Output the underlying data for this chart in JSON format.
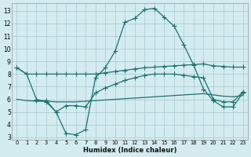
{
  "background_color": "#d4ecef",
  "grid_color": "#aacfd5",
  "line_color": "#1e7070",
  "xlabel": "Humidex (Indice chaleur)",
  "x_ticks": [
    0,
    1,
    2,
    3,
    4,
    5,
    6,
    7,
    8,
    9,
    10,
    11,
    12,
    13,
    14,
    15,
    16,
    17,
    18,
    19,
    20,
    21,
    22,
    23
  ],
  "y_ticks": [
    3,
    4,
    5,
    6,
    7,
    8,
    9,
    10,
    11,
    12,
    13
  ],
  "ylim": [
    2.8,
    13.6
  ],
  "xlim": [
    -0.5,
    23.5
  ],
  "line_main_x": [
    0,
    1,
    2,
    3,
    4,
    5,
    6,
    7,
    8,
    9,
    10,
    11,
    12,
    13,
    14,
    15,
    16,
    17,
    18,
    19,
    20,
    21,
    22,
    23
  ],
  "line_main_y": [
    8.5,
    8.0,
    6.0,
    5.8,
    5.0,
    3.3,
    3.2,
    3.6,
    7.7,
    8.5,
    9.8,
    12.1,
    12.4,
    13.1,
    13.2,
    12.5,
    11.8,
    10.3,
    8.7,
    6.8,
    5.9,
    5.4,
    5.4,
    6.5
  ],
  "line_upper_x": [
    0,
    1,
    2,
    3,
    4,
    5,
    6,
    7,
    8,
    9,
    10,
    11,
    12,
    13,
    14,
    15,
    16,
    17,
    18,
    19,
    20,
    21,
    22,
    23
  ],
  "line_upper_y": [
    8.5,
    8.0,
    8.0,
    8.0,
    8.0,
    8.0,
    8.0,
    8.0,
    8.0,
    8.1,
    8.2,
    8.3,
    8.4,
    8.5,
    8.55,
    8.6,
    8.65,
    8.7,
    8.75,
    8.8,
    8.65,
    8.6,
    8.55,
    8.55
  ],
  "line_lower1_x": [
    0,
    1,
    2,
    3,
    4,
    5,
    6,
    7,
    8,
    9,
    10,
    11,
    12,
    13,
    14,
    15,
    16,
    17,
    18,
    19,
    20,
    21,
    22,
    23
  ],
  "line_lower1_y": [
    6.0,
    5.9,
    5.85,
    5.85,
    5.8,
    5.8,
    5.8,
    5.85,
    5.9,
    5.95,
    6.0,
    6.05,
    6.1,
    6.15,
    6.2,
    6.25,
    6.3,
    6.35,
    6.4,
    6.45,
    6.35,
    6.25,
    6.2,
    6.3
  ],
  "line_lower2_x": [
    2,
    3,
    4,
    5,
    6,
    7,
    8,
    9,
    10,
    11,
    12,
    13,
    14,
    15,
    16,
    17,
    18,
    19,
    20,
    21,
    22,
    23
  ],
  "line_lower2_y": [
    5.9,
    5.9,
    5.0,
    5.5,
    5.5,
    5.4,
    6.5,
    6.9,
    7.2,
    7.5,
    7.7,
    7.9,
    8.0,
    8.0,
    8.0,
    7.9,
    7.8,
    7.7,
    6.0,
    5.8,
    5.8,
    6.6
  ]
}
